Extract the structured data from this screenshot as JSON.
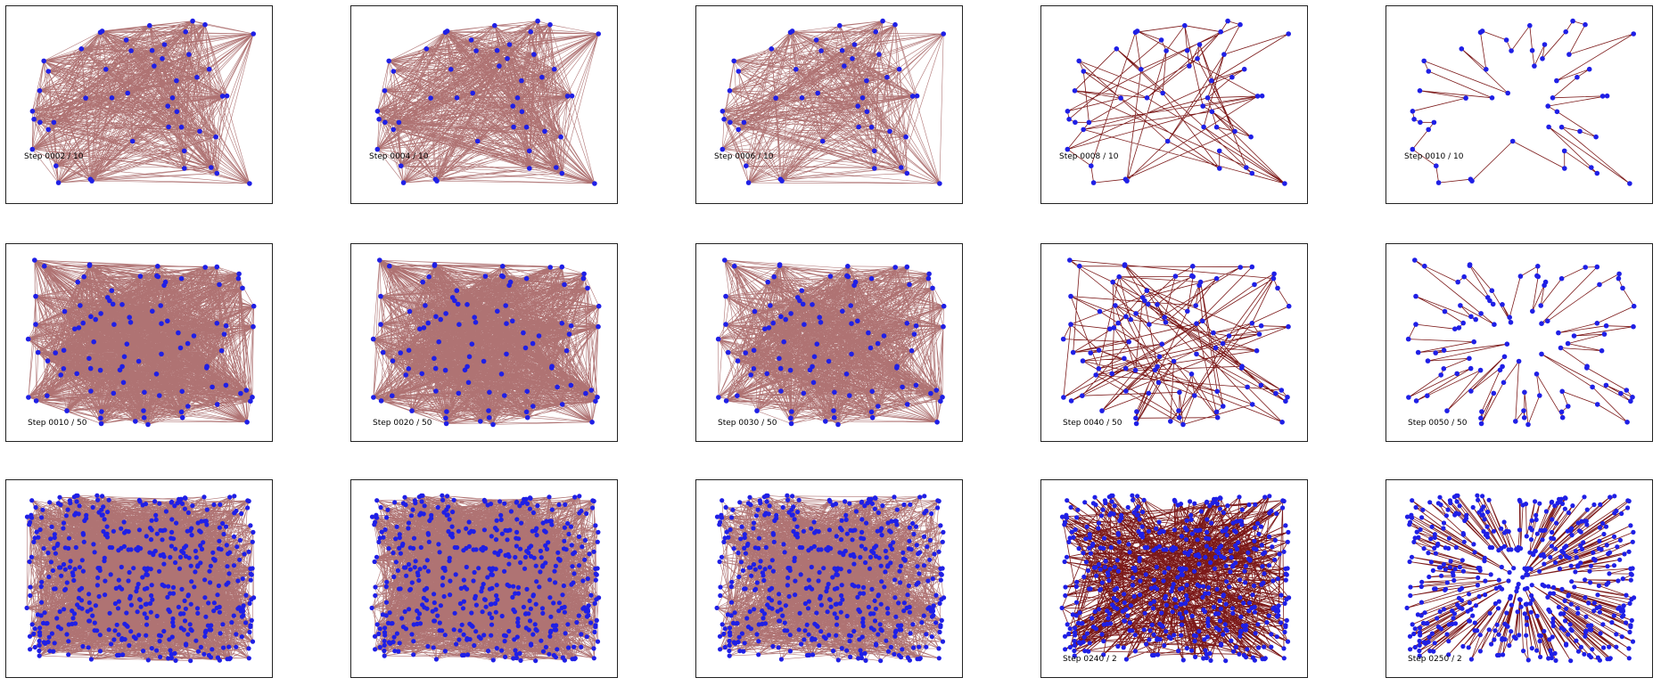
{
  "colors": {
    "edge": "#6e0000",
    "node": "#1f1fe6",
    "frame": "#222222",
    "background": "#ffffff"
  },
  "panels": [
    {
      "label": "Step 0002 / 10",
      "nodes": 50,
      "mode": "dense",
      "density": 1.0
    },
    {
      "label": "Step 0004 / 10",
      "nodes": 50,
      "mode": "dense",
      "density": 0.95
    },
    {
      "label": "Step 0006 / 10",
      "nodes": 50,
      "mode": "dense",
      "density": 0.55
    },
    {
      "label": "Step 0008 / 10",
      "nodes": 50,
      "mode": "mixed",
      "density": 0.08
    },
    {
      "label": "Step 0010 / 10",
      "nodes": 50,
      "mode": "tour",
      "density": 0
    },
    {
      "label": "Step 0010 / 50",
      "nodes": 100,
      "mode": "dense",
      "density": 1.0
    },
    {
      "label": "Step 0020 / 50",
      "nodes": 100,
      "mode": "dense",
      "density": 0.95
    },
    {
      "label": "Step 0030 / 50",
      "nodes": 100,
      "mode": "dense",
      "density": 0.6
    },
    {
      "label": "Step 0040 / 50",
      "nodes": 100,
      "mode": "mixed",
      "density": 0.06
    },
    {
      "label": "Step 0050 / 50",
      "nodes": 100,
      "mode": "tour",
      "density": 0
    },
    {
      "label": "",
      "nodes": 500,
      "mode": "dense",
      "density": 1.0
    },
    {
      "label": "",
      "nodes": 500,
      "mode": "dense",
      "density": 0.95
    },
    {
      "label": "",
      "nodes": 500,
      "mode": "dense",
      "density": 0.55
    },
    {
      "label": "Step 0240 / 2",
      "nodes": 500,
      "mode": "mixed",
      "density": 0.02
    },
    {
      "label": "Step 0250 / 2",
      "nodes": 500,
      "mode": "tour",
      "density": 0
    }
  ]
}
